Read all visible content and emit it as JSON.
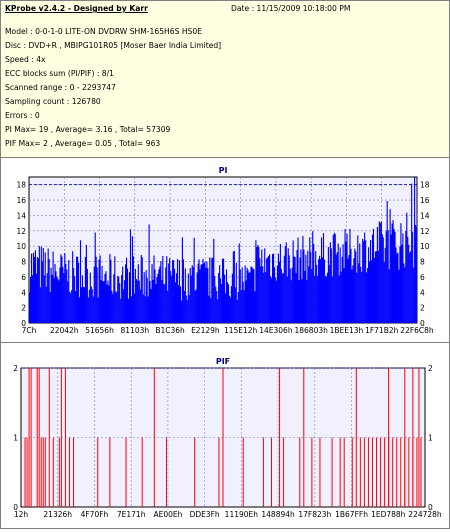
{
  "header": {
    "app_title": "KProbe v2.4.2 - Designed by Karr",
    "date": "Date : 11/15/2009 10:18:00 PM",
    "lines": [
      "Model : 0-0-1-0 LITE-ON DVDRW SHM-165H6S HS0E",
      "Disc : DVD+R , MBIPG101R05 [Moser Baer India Limited]",
      "Speed : 4x",
      "ECC blocks sum (PI/PIF) : 8/1",
      "Scanned range : 0 - 2293747",
      "Sampling count : 126780",
      "Errors : 0",
      "PI Max= 19 , Average= 3.16 , Total= 57309",
      "PIF Max= 2 , Average= 0.05 , Total= 963"
    ]
  },
  "colors": {
    "pi_bar": "#0000ff",
    "pif_bar": "#ff0000",
    "plot_bg": "#f0f0ff",
    "max_line": "#000080",
    "title": "#000080"
  },
  "chart_data": [
    {
      "type": "bar",
      "title": "PI",
      "xlabel": "",
      "ylabel": "",
      "ylim": [
        0,
        19
      ],
      "yticks": [
        0,
        2,
        4,
        6,
        8,
        10,
        12,
        14,
        16,
        18
      ],
      "xtick_labels": [
        "7Ch",
        "22042h",
        "51656h",
        "81103h",
        "B1C36h",
        "E2129h",
        "115E12h",
        "14E306h",
        "186803h",
        "1BEE13h",
        "1F71B2h",
        "22F6C8h"
      ],
      "grid": true,
      "max_line": 18,
      "profile": [
        {
          "x": 0.0,
          "avg": 7.5,
          "spread": 3.5,
          "peak": 14
        },
        {
          "x": 0.08,
          "avg": 6.5,
          "spread": 3.0,
          "peak": 12
        },
        {
          "x": 0.2,
          "avg": 6.0,
          "spread": 3.0,
          "peak": 12
        },
        {
          "x": 0.33,
          "avg": 6.0,
          "spread": 3.0,
          "peak": 13
        },
        {
          "x": 0.47,
          "avg": 5.8,
          "spread": 3.0,
          "peak": 12
        },
        {
          "x": 0.58,
          "avg": 5.5,
          "spread": 2.5,
          "peak": 10
        },
        {
          "x": 0.585,
          "avg": 8.0,
          "spread": 3.0,
          "peak": 12
        },
        {
          "x": 0.72,
          "avg": 8.5,
          "spread": 3.0,
          "peak": 13
        },
        {
          "x": 0.85,
          "avg": 9.5,
          "spread": 3.0,
          "peak": 14
        },
        {
          "x": 1.0,
          "avg": 11.0,
          "spread": 4.0,
          "peak": 19
        }
      ],
      "sample_count": 396
    },
    {
      "type": "bar",
      "title": "PIF",
      "xlabel": "",
      "ylabel": "",
      "ylim": [
        0,
        2
      ],
      "yticks": [
        0,
        1,
        2
      ],
      "xtick_labels": [
        "12h",
        "21326h",
        "4F70Fh",
        "7E171h",
        "AE00Eh",
        "DDE3Fh",
        "11190Eh",
        "148894h",
        "17F823h",
        "1B67FFh",
        "1ED788h",
        "224728h"
      ],
      "grid": true,
      "max_line": 2,
      "spikes_1": [
        0.01,
        0.015,
        0.05,
        0.055,
        0.06,
        0.08,
        0.095,
        0.12,
        0.13,
        0.19,
        0.22,
        0.26,
        0.3,
        0.36,
        0.43,
        0.49,
        0.55,
        0.6,
        0.62,
        0.65,
        0.69,
        0.72,
        0.74,
        0.77,
        0.79,
        0.8,
        0.82,
        0.84,
        0.85,
        0.86,
        0.87,
        0.88,
        0.89,
        0.9,
        0.91,
        0.92,
        0.93,
        0.94,
        0.95,
        0.96,
        0.97,
        0.98,
        0.99
      ],
      "spikes_2": [
        0.02,
        0.025,
        0.04,
        0.045,
        0.07,
        0.1,
        0.11,
        0.33,
        0.5,
        0.64,
        0.7,
        0.83,
        0.91,
        0.95,
        0.97,
        0.985
      ]
    }
  ]
}
